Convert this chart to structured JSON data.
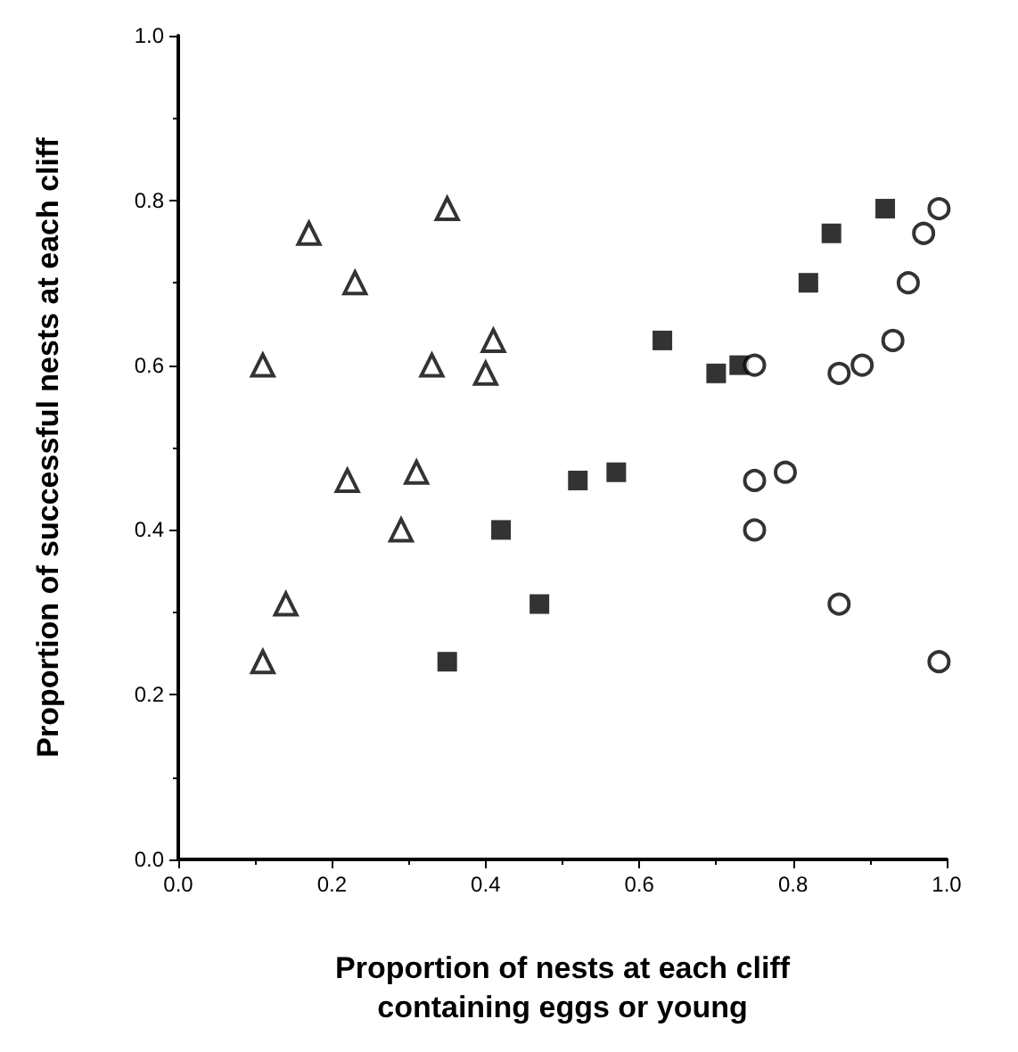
{
  "chart_data": {
    "type": "scatter",
    "xlabel": "Proportion of nests at each cliff\ncontaining eggs or young",
    "ylabel": "Proportion of successful nests at each cliff",
    "xlim": [
      0,
      1
    ],
    "ylim": [
      0,
      1
    ],
    "xticks": [
      {
        "value": 0,
        "label": "0.0"
      },
      {
        "value": 0.2,
        "label": "0.2"
      },
      {
        "value": 0.4,
        "label": "0.4"
      },
      {
        "value": 0.6,
        "label": "0.6"
      },
      {
        "value": 0.8,
        "label": "0.8"
      },
      {
        "value": 1,
        "label": "1.0"
      }
    ],
    "yticks": [
      {
        "value": 0,
        "label": "0.0"
      },
      {
        "value": 0.2,
        "label": "0.2"
      },
      {
        "value": 0.4,
        "label": "0.4"
      },
      {
        "value": 0.6,
        "label": "0.6"
      },
      {
        "value": 0.8,
        "label": "0.8"
      },
      {
        "value": 1,
        "label": "1.0"
      }
    ],
    "series": [
      {
        "color": "#000000",
        "marker": "triangle",
        "x": [
          0.35,
          0.17,
          0.23,
          0.41,
          0.11,
          0.33,
          0.4,
          0.31,
          0.22,
          0.29,
          0.14,
          0.11
        ],
        "values": [
          0.79,
          0.76,
          0.7,
          0.63,
          0.6,
          0.6,
          0.59,
          0.47,
          0.46,
          0.4,
          0.31,
          0.24
        ]
      },
      {
        "color": "#000000",
        "marker": "square",
        "x": [
          0.92,
          0.85,
          0.82,
          0.63,
          0.7,
          0.73,
          0.52,
          0.57,
          0.42,
          0.47,
          0.35
        ],
        "values": [
          0.79,
          0.76,
          0.7,
          0.63,
          0.59,
          0.6,
          0.46,
          0.47,
          0.4,
          0.31,
          0.24
        ]
      },
      {
        "color": "#000000",
        "marker": "circle",
        "x": [
          0.99,
          0.97,
          0.95,
          0.93,
          0.89,
          0.86,
          0.75,
          0.79,
          0.75,
          0.75,
          0.86,
          0.99
        ],
        "values": [
          0.79,
          0.76,
          0.7,
          0.63,
          0.6,
          0.59,
          0.6,
          0.47,
          0.46,
          0.4,
          0.31,
          0.24
        ]
      }
    ]
  }
}
